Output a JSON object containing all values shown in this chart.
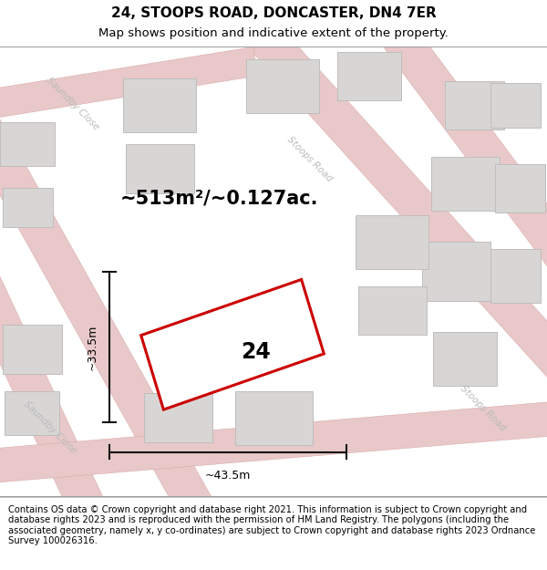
{
  "title": "24, STOOPS ROAD, DONCASTER, DN4 7ER",
  "subtitle": "Map shows position and indicative extent of the property.",
  "footer": "Contains OS data © Crown copyright and database right 2021. This information is subject to Crown copyright and database rights 2023 and is reproduced with the permission of HM Land Registry. The polygons (including the associated geometry, namely x, y co-ordinates) are subject to Crown copyright and database rights 2023 Ordnance Survey 100026316.",
  "area_label": "~513m²/~0.127ac.",
  "property_number": "24",
  "dim_width": "~43.5m",
  "dim_height": "~33.5m",
  "road_label_saundby_top": "Saundby Close",
  "road_label_stoops_mid": "Stoops Road",
  "road_label_stoops_bot": "Stoops Road",
  "road_label_saundby_bot": "Saundby Close",
  "map_bg": "#eeecec",
  "road_fill": "#e8c8c8",
  "road_stroke": "#d4a0a0",
  "building_fill": "#d8d5d5",
  "building_edge": "#c0bdbd",
  "property_fill": "#ffffff",
  "property_edge": "#cc0000",
  "dim_color": "#111111",
  "road_text_color": "#bbbbbb",
  "title_fontsize": 11,
  "subtitle_fontsize": 9.5,
  "footer_fontsize": 7.2
}
